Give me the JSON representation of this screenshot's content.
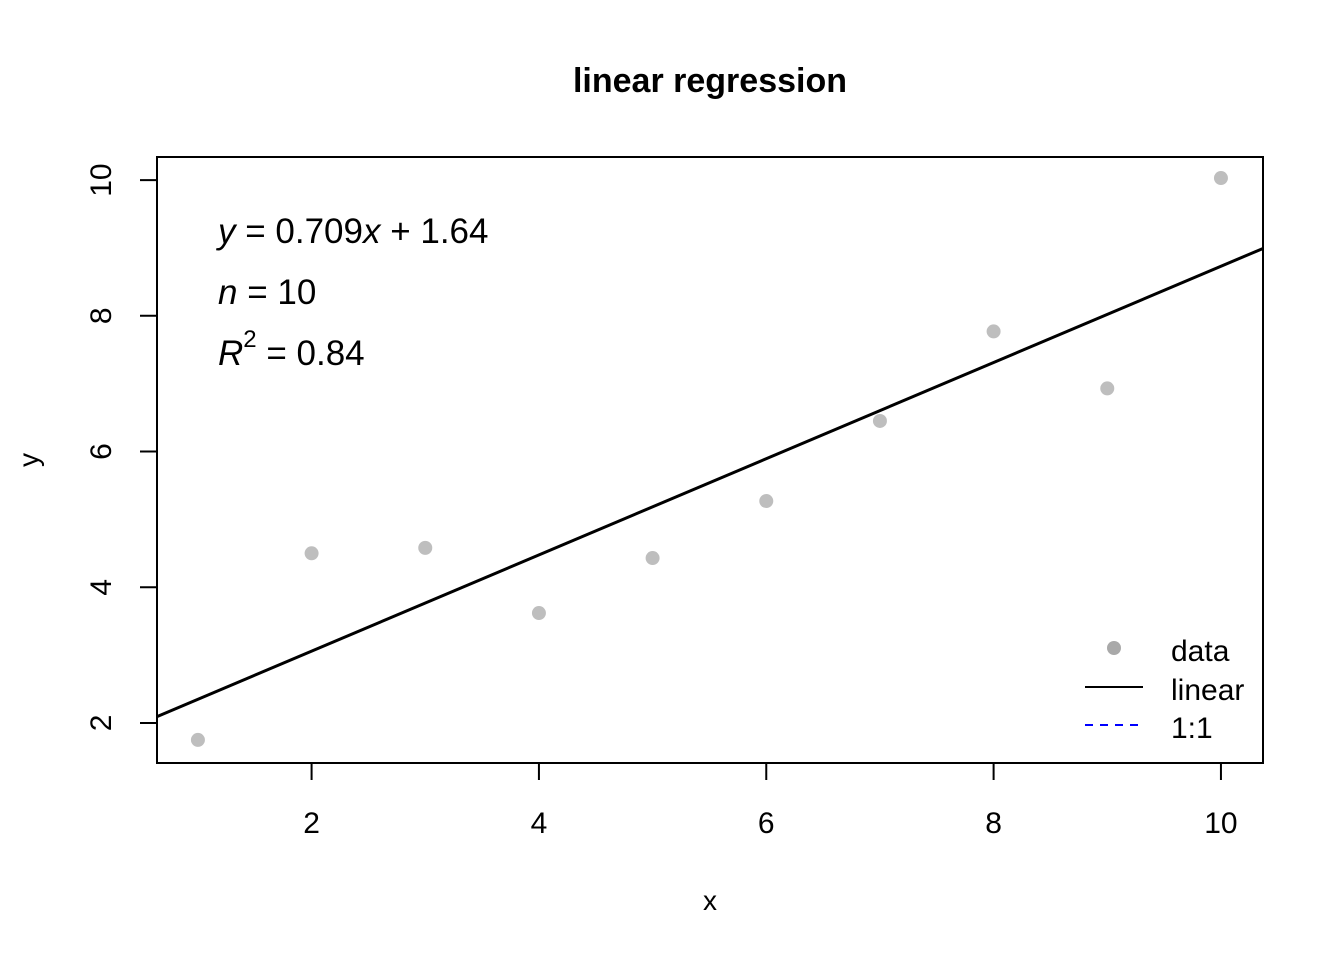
{
  "chart_data": {
    "type": "scatter",
    "title": "linear regression",
    "xlabel": "x",
    "ylabel": "y",
    "xlim": [
      0.64,
      10.37
    ],
    "ylim": [
      1.41,
      10.34
    ],
    "xticks": [
      2,
      4,
      6,
      8,
      10
    ],
    "yticks": [
      2,
      4,
      6,
      8,
      10
    ],
    "grid": false,
    "legend_position": "bottom-right",
    "points": {
      "x": [
        1,
        2,
        3,
        4,
        5,
        6,
        7,
        8,
        9,
        10
      ],
      "y": [
        1.75,
        4.5,
        4.58,
        3.62,
        4.43,
        5.27,
        6.45,
        7.77,
        6.93,
        10.03
      ],
      "color": "#bebebe"
    },
    "fit": {
      "slope": 0.709,
      "intercept": 1.64,
      "color": "#000000"
    },
    "annotations": {
      "equation": {
        "y": "y",
        "eq": " = 0.709",
        "x": "x",
        "rest": " + 1.64"
      },
      "n": {
        "label": "n",
        "value": " = 10"
      },
      "r2": {
        "label": "R",
        "sup": "2",
        "value": " = 0.84"
      }
    },
    "legend": [
      {
        "label": "data",
        "kind": "point",
        "color": "#a9a9a9"
      },
      {
        "label": "linear",
        "kind": "solid-line",
        "color": "#000000"
      },
      {
        "label": "1:1",
        "kind": "dashed-line",
        "color": "#0000ff"
      }
    ]
  }
}
